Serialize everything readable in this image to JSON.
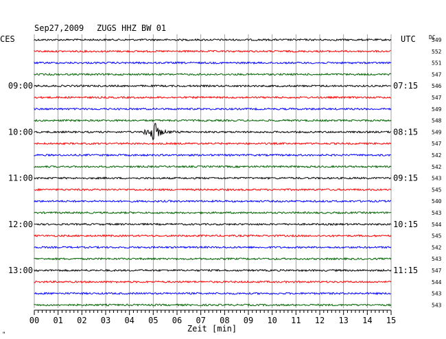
{
  "header": {
    "date": "Sep27,2009",
    "station": "ZUGS HHZ BW 01",
    "left_zone": "CES",
    "right_zone": "UTC",
    "dc_label": "DC"
  },
  "footer": {
    "xlabel": "Zeit [min]",
    "corner_mark": "\""
  },
  "colors": {
    "cycle": [
      "#000000",
      "#ff0000",
      "#0000ff",
      "#006400"
    ],
    "grid": "#000000"
  },
  "chart_data": {
    "type": "line",
    "title": "Sep27,2009 ZUGS HHZ BW 01",
    "xlabel": "Zeit [min]",
    "xlim": [
      0,
      15
    ],
    "x_ticks": [
      "00",
      "01",
      "02",
      "03",
      "04",
      "05",
      "06",
      "07",
      "08",
      "09",
      "10",
      "11",
      "12",
      "13",
      "14",
      "15"
    ],
    "rows_per_hour": 4,
    "rows": [
      {
        "left": "",
        "right": "",
        "dc": "549"
      },
      {
        "left": "",
        "right": "",
        "dc": "552"
      },
      {
        "left": "",
        "right": "",
        "dc": "551"
      },
      {
        "left": "",
        "right": "",
        "dc": "547"
      },
      {
        "left": "09:00",
        "right": "07:15",
        "dc": "546"
      },
      {
        "left": "",
        "right": "",
        "dc": "547"
      },
      {
        "left": "",
        "right": "",
        "dc": "549"
      },
      {
        "left": "",
        "right": "",
        "dc": "548"
      },
      {
        "left": "10:00",
        "right": "08:15",
        "dc": "549"
      },
      {
        "left": "",
        "right": "",
        "dc": "547"
      },
      {
        "left": "",
        "right": "",
        "dc": "542"
      },
      {
        "left": "",
        "right": "",
        "dc": "542"
      },
      {
        "left": "11:00",
        "right": "09:15",
        "dc": "543"
      },
      {
        "left": "",
        "right": "",
        "dc": "545"
      },
      {
        "left": "",
        "right": "",
        "dc": "540"
      },
      {
        "left": "",
        "right": "",
        "dc": "543"
      },
      {
        "left": "12:00",
        "right": "10:15",
        "dc": "544"
      },
      {
        "left": "",
        "right": "",
        "dc": "545"
      },
      {
        "left": "",
        "right": "",
        "dc": "542"
      },
      {
        "left": "",
        "right": "",
        "dc": "543"
      },
      {
        "left": "13:00",
        "right": "11:15",
        "dc": "547"
      },
      {
        "left": "",
        "right": "",
        "dc": "544"
      },
      {
        "left": "",
        "right": "",
        "dc": "543"
      },
      {
        "left": "",
        "right": "",
        "dc": "543"
      }
    ],
    "event": {
      "row": 8,
      "start_min": 4.6,
      "peak_min": 5.05,
      "end_min": 6.2
    }
  }
}
